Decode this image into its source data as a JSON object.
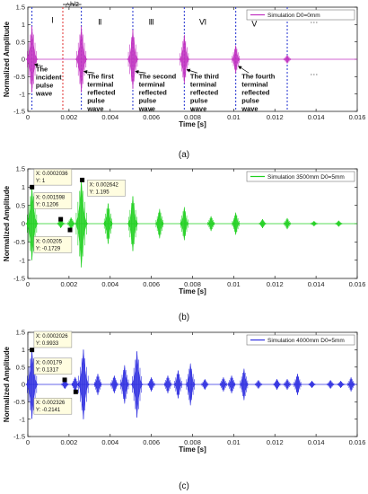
{
  "chart_data": [
    {
      "type": "line",
      "panel_label": "(a)",
      "xlabel": "Time [s]",
      "ylabel": "Normalized Amplitude",
      "xlim": [
        0,
        0.016
      ],
      "ylim": [
        -1.5,
        1.5
      ],
      "x_ticks": [
        "0",
        "0.002",
        "0.004",
        "0.006",
        "0.008",
        "0.01",
        "0.012",
        "0.014",
        "0.016"
      ],
      "y_ticks": [
        "-1.5",
        "-1",
        "-0.5",
        "0",
        "0.5",
        "1",
        "1.5"
      ],
      "grid": false,
      "legend": "top-right",
      "series": [
        {
          "name": "Simulation  D0=0mm",
          "color": "#c030c0",
          "pulses": [
            {
              "t": 0.0002,
              "amp": 0.95
            },
            {
              "t": 0.0026,
              "amp": 0.95
            },
            {
              "t": 0.0051,
              "amp": 0.85
            },
            {
              "t": 0.0076,
              "amp": 0.7
            },
            {
              "t": 0.0101,
              "amp": 0.4
            },
            {
              "t": 0.0126,
              "amp": 0.12
            }
          ]
        }
      ],
      "boundary_lines": [
        0.0002,
        0.0026,
        0.0051,
        0.0076,
        0.0101,
        0.0126
      ],
      "h_half_marker": {
        "label": "△h/2",
        "from": 0.0017,
        "to": 0.0026
      },
      "regions": [
        {
          "label": "Ⅰ",
          "x": 0.0012,
          "y": 1.05
        },
        {
          "label": "Ⅱ",
          "x": 0.0035,
          "y": 1.0
        },
        {
          "label": "Ⅲ",
          "x": 0.006,
          "y": 1.0
        },
        {
          "label": "Ⅵ",
          "x": 0.0085,
          "y": 1.0
        },
        {
          "label": "Ⅴ",
          "x": 0.011,
          "y": 0.95
        },
        {
          "label": "···",
          "x": 0.0139,
          "y": 1.0
        },
        {
          "label": "···",
          "x": 0.0139,
          "y": -0.5
        }
      ],
      "annotations": [
        {
          "text": [
            "The",
            "incident",
            "pulse",
            "wave"
          ],
          "x": 0.0003,
          "y": -0.35,
          "ax": 0.0002,
          "ay": -0.15
        },
        {
          "text": [
            "The first",
            "terminal",
            "reflected",
            "pulse",
            "wave"
          ],
          "x": 0.0028,
          "y": -0.55,
          "ax": 0.0026,
          "ay": -0.35
        },
        {
          "text": [
            "The second",
            "terminal",
            "reflected",
            "pulse",
            "wave"
          ],
          "x": 0.0053,
          "y": -0.55,
          "ax": 0.0051,
          "ay": -0.35
        },
        {
          "text": [
            "The third",
            "terminal",
            "reflected",
            "pulse",
            "wave"
          ],
          "x": 0.0078,
          "y": -0.55,
          "ax": 0.0076,
          "ay": -0.3
        },
        {
          "text": [
            "The fourth",
            "terminal",
            "reflected",
            "pulse",
            "wave"
          ],
          "x": 0.0103,
          "y": -0.55,
          "ax": 0.0101,
          "ay": -0.2
        }
      ]
    },
    {
      "type": "line",
      "panel_label": "(b)",
      "xlabel": "Time [s]",
      "ylabel": "Normalized Amplitude",
      "xlim": [
        0,
        0.016
      ],
      "ylim": [
        -1.5,
        1.5
      ],
      "x_ticks": [
        "0",
        "0.002",
        "0.004",
        "0.006",
        "0.008",
        "0.01",
        "0.012",
        "0.014",
        "0.016"
      ],
      "y_ticks": [
        "-1.5",
        "-1",
        "-0.5",
        "0",
        "0.5",
        "1",
        "1.5"
      ],
      "grid": false,
      "legend": "top-right",
      "series": [
        {
          "name": "Simulation 3500mm  D0=5mm",
          "color": "#20d020",
          "pulses": [
            {
              "t": 0.0002,
              "amp": 1.0
            },
            {
              "t": 0.0016,
              "amp": 0.12
            },
            {
              "t": 0.0021,
              "amp": 0.17
            },
            {
              "t": 0.0026,
              "amp": 1.195
            },
            {
              "t": 0.0039,
              "amp": 0.55
            },
            {
              "t": 0.0051,
              "amp": 0.75
            },
            {
              "t": 0.0064,
              "amp": 0.4
            },
            {
              "t": 0.0076,
              "amp": 0.45
            },
            {
              "t": 0.0089,
              "amp": 0.2
            },
            {
              "t": 0.0101,
              "amp": 0.3
            },
            {
              "t": 0.0114,
              "amp": 0.12
            },
            {
              "t": 0.0126,
              "amp": 0.15
            },
            {
              "t": 0.0139,
              "amp": 0.07
            },
            {
              "t": 0.0151,
              "amp": 0.08
            }
          ]
        }
      ],
      "datatips": [
        {
          "x": "0.0002036",
          "y": "1",
          "px": 0.0002036,
          "py": 1.0,
          "box_x": 0.0003,
          "box_y": 1.3
        },
        {
          "x": "0.001598",
          "y": "0.1206",
          "px": 0.001598,
          "py": 0.1206,
          "box_x": 0.0003,
          "box_y": 0.65
        },
        {
          "x": "0.00205",
          "y": "-0.1729",
          "px": 0.00205,
          "py": -0.1729,
          "box_x": 0.0003,
          "box_y": -0.55
        },
        {
          "x": "0.002642",
          "y": "1.195",
          "px": 0.002642,
          "py": 1.195,
          "box_x": 0.0029,
          "box_y": 1.0
        }
      ]
    },
    {
      "type": "line",
      "panel_label": "(c)",
      "xlabel": "Time [s]",
      "ylabel": "Normalized Amplitude",
      "xlim": [
        0,
        0.016
      ],
      "ylim": [
        -1.5,
        1.5
      ],
      "x_ticks": [
        "0",
        "0.002",
        "0.004",
        "0.006",
        "0.008",
        "0.01",
        "0.012",
        "0.014",
        "0.016"
      ],
      "y_ticks": [
        "-1.5",
        "-1",
        "-0.5",
        "0",
        "0.5",
        "1",
        "1.5"
      ],
      "grid": false,
      "legend": "top-right",
      "series": [
        {
          "name": "Simulation 4000mm  D0=5mm",
          "color": "#3030e0",
          "pulses": [
            {
              "t": 0.0002,
              "amp": 0.99
            },
            {
              "t": 0.0018,
              "amp": 0.13
            },
            {
              "t": 0.0023,
              "amp": 0.21
            },
            {
              "t": 0.0027,
              "amp": 1.0
            },
            {
              "t": 0.0034,
              "amp": 0.3
            },
            {
              "t": 0.0042,
              "amp": 0.25
            },
            {
              "t": 0.0047,
              "amp": 0.55
            },
            {
              "t": 0.0053,
              "amp": 0.95
            },
            {
              "t": 0.006,
              "amp": 0.2
            },
            {
              "t": 0.0068,
              "amp": 0.25
            },
            {
              "t": 0.0073,
              "amp": 0.4
            },
            {
              "t": 0.0079,
              "amp": 0.6
            },
            {
              "t": 0.0086,
              "amp": 0.15
            },
            {
              "t": 0.0095,
              "amp": 0.2
            },
            {
              "t": 0.0099,
              "amp": 0.25
            },
            {
              "t": 0.0105,
              "amp": 0.45
            },
            {
              "t": 0.0112,
              "amp": 0.12
            },
            {
              "t": 0.0121,
              "amp": 0.15
            },
            {
              "t": 0.0126,
              "amp": 0.15
            },
            {
              "t": 0.0131,
              "amp": 0.3
            },
            {
              "t": 0.0138,
              "amp": 0.1
            },
            {
              "t": 0.0147,
              "amp": 0.12
            },
            {
              "t": 0.0152,
              "amp": 0.1
            },
            {
              "t": 0.0157,
              "amp": 0.2
            }
          ]
        }
      ],
      "datatips": [
        {
          "x": "0.0002026",
          "y": "0.9933",
          "px": 0.0002026,
          "py": 0.9933,
          "box_x": 0.0003,
          "box_y": 1.32
        },
        {
          "x": "0.00179",
          "y": "0.1317",
          "px": 0.00179,
          "py": 0.1317,
          "box_x": 0.0003,
          "box_y": 0.55
        },
        {
          "x": "0.002326",
          "y": "-0.2141",
          "px": 0.002326,
          "py": -0.2141,
          "box_x": 0.0003,
          "box_y": -0.6
        }
      ]
    }
  ]
}
